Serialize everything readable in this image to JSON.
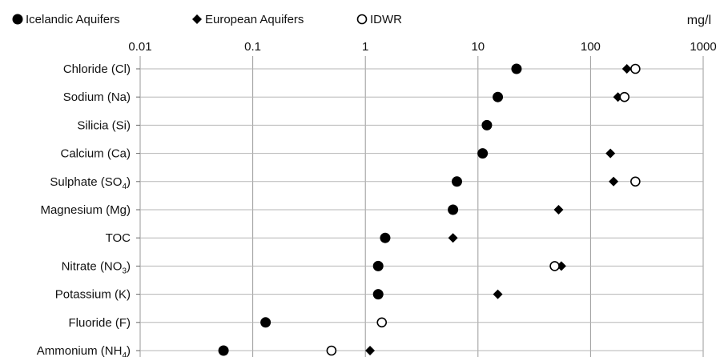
{
  "chart_data": {
    "type": "scatter",
    "title": "",
    "unit": "mg/l",
    "x_scale": "log",
    "xlim": [
      0.01,
      1000
    ],
    "x_ticks": [
      "0.01",
      "0.1",
      "1",
      "10",
      "100",
      "1000"
    ],
    "grid": "vertical",
    "legend_placement": "top",
    "categories": [
      {
        "name": "Chloride (Cl)",
        "sub": ""
      },
      {
        "name": "Sodium (Na)",
        "sub": ""
      },
      {
        "name": "Silicia (Si)",
        "sub": ""
      },
      {
        "name": "Calcium (Ca)",
        "sub": ""
      },
      {
        "name": "Sulphate (SO",
        "sub": "4",
        "tail": ")"
      },
      {
        "name": "Magnesium (Mg)",
        "sub": ""
      },
      {
        "name": "TOC",
        "sub": ""
      },
      {
        "name": "Nitrate (NO",
        "sub": "3",
        "tail": ")"
      },
      {
        "name": "Potassium (K)",
        "sub": ""
      },
      {
        "name": "Fluoride (F)",
        "sub": ""
      },
      {
        "name": "Ammonium (NH",
        "sub": "4",
        "tail": ")"
      }
    ],
    "series": [
      {
        "name": "Icelandic Aquifers",
        "marker": "filled-circle",
        "values": [
          22,
          15,
          12,
          11,
          6.5,
          6,
          1.5,
          1.3,
          1.3,
          0.13,
          0.055
        ]
      },
      {
        "name": "European Aquifers",
        "marker": "diamond",
        "values": [
          210,
          175,
          null,
          150,
          160,
          52,
          6,
          55,
          15,
          null,
          1.1
        ]
      },
      {
        "name": "IDWR",
        "marker": "open-circle",
        "values": [
          250,
          200,
          null,
          null,
          250,
          null,
          null,
          48,
          null,
          1.4,
          0.5
        ]
      }
    ]
  }
}
